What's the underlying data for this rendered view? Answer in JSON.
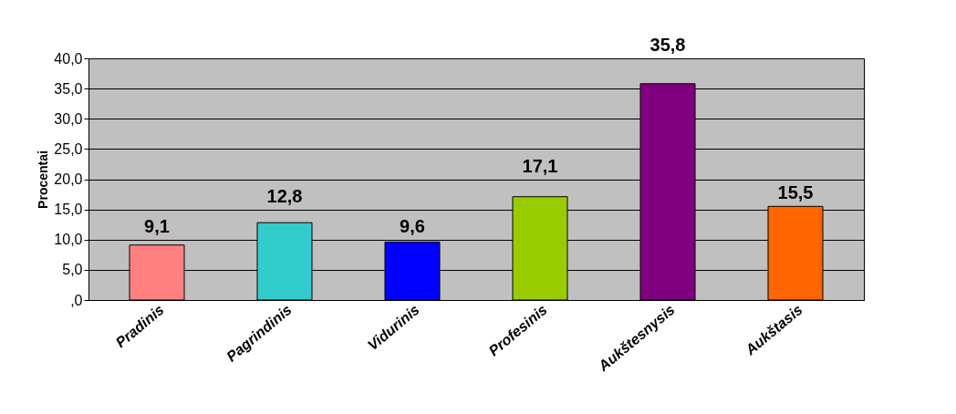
{
  "chart_data": {
    "type": "bar",
    "ylabel": "Procentai",
    "categories": [
      "Pradinis",
      "Pagrindinis",
      "Vidurinis",
      "Profesinis",
      "Aukštesnysis",
      "Aukštasis"
    ],
    "values": [
      9.1,
      12.8,
      9.6,
      17.1,
      35.8,
      15.5
    ],
    "colors": [
      "#ff8080",
      "#33cccc",
      "#0000ff",
      "#99cc00",
      "#800080",
      "#ff6600"
    ],
    "value_labels": [
      "9,1",
      "12,8",
      "9,6",
      "17,1",
      "35,8",
      "15,5"
    ],
    "ylim": [
      0,
      40
    ],
    "yticks": [
      {
        "value": 0,
        "label": ",0"
      },
      {
        "value": 5,
        "label": "5,0"
      },
      {
        "value": 10,
        "label": "10,0"
      },
      {
        "value": 15,
        "label": "15,0"
      },
      {
        "value": 20,
        "label": "20,0"
      },
      {
        "value": 25,
        "label": "25,0"
      },
      {
        "value": 30,
        "label": "30,0"
      },
      {
        "value": 35,
        "label": "35,0"
      },
      {
        "value": 40,
        "label": "40,0"
      }
    ],
    "grid": "y"
  }
}
